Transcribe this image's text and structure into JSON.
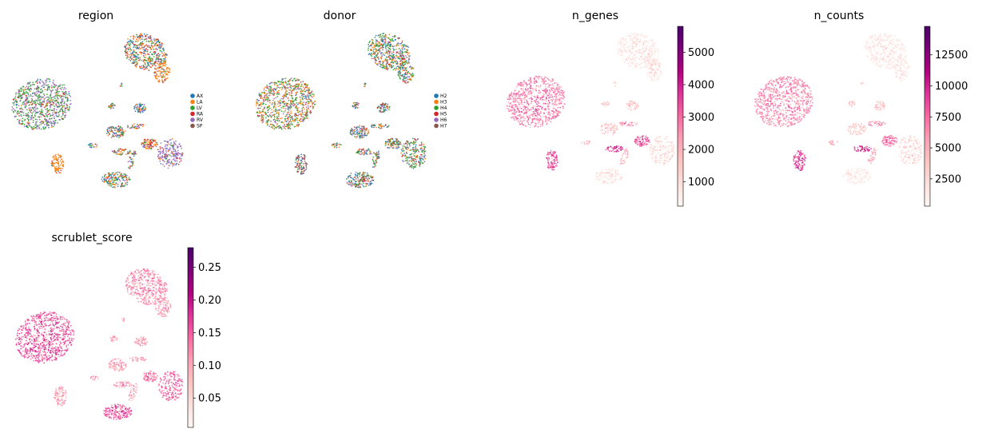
{
  "colors": {
    "region": {
      "AX": "#1f77b4",
      "LA": "#ff7f0e",
      "LV": "#2ca02c",
      "RA": "#d62728",
      "RV": "#9467bd",
      "SP": "#8c564b"
    },
    "donor": {
      "H2": "#1f77b4",
      "H3": "#ff7f0e",
      "H4": "#2ca02c",
      "H5": "#d62728",
      "H6": "#9467bd",
      "H7": "#8c564b"
    },
    "colormap": [
      "#fff7f3",
      "#fde0dd",
      "#fcc5c0",
      "#fa9fb5",
      "#f768a1",
      "#dd3497",
      "#ae017e",
      "#7a0177",
      "#49006a"
    ]
  },
  "chart_data": [
    {
      "type": "scatter",
      "title": "region",
      "color_mode": "categorical",
      "legend": {
        "placement": "right",
        "entries": [
          "AX",
          "LA",
          "LV",
          "RA",
          "RV",
          "SP"
        ]
      }
    },
    {
      "type": "scatter",
      "title": "donor",
      "color_mode": "categorical",
      "legend": {
        "placement": "right",
        "entries": [
          "H2",
          "H3",
          "H4",
          "H5",
          "H6",
          "H7"
        ]
      }
    },
    {
      "type": "scatter",
      "title": "n_genes",
      "color_mode": "continuous",
      "colorbar": {
        "min": 250,
        "max": 5800,
        "ticks": [
          1000,
          2000,
          3000,
          4000,
          5000
        ]
      }
    },
    {
      "type": "scatter",
      "title": "n_counts",
      "color_mode": "continuous",
      "colorbar": {
        "min": 300,
        "max": 14800,
        "ticks": [
          2500,
          5000,
          7500,
          10000,
          12500
        ]
      }
    },
    {
      "type": "scatter",
      "title": "scrublet_score",
      "color_mode": "continuous",
      "colorbar": {
        "min": 0.005,
        "max": 0.28,
        "ticks": [
          0.05,
          0.1,
          0.15,
          0.2,
          0.25
        ],
        "tick_labels": [
          "0.05",
          "0.10",
          "0.15",
          "0.20",
          "0.25"
        ]
      }
    }
  ]
}
